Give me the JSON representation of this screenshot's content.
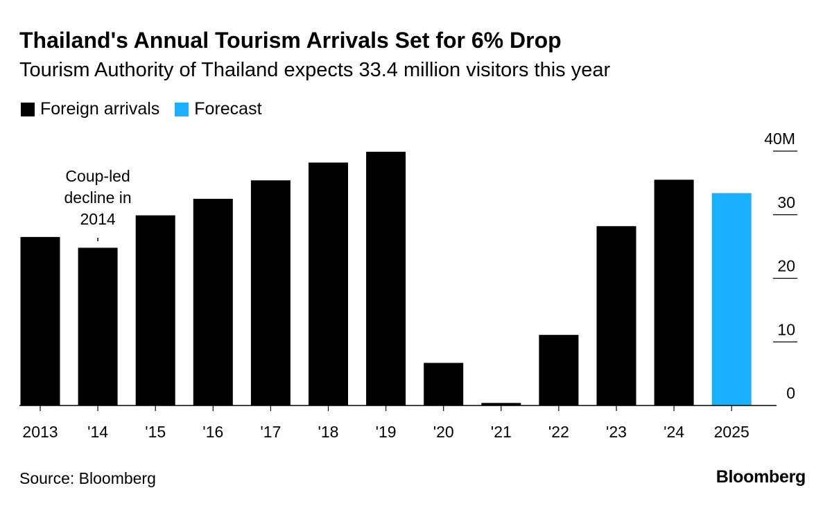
{
  "header": {
    "title": "Thailand's Annual Tourism Arrivals Set for 6% Drop",
    "subtitle": "Tourism Authority of Thailand expects 33.4 million visitors this year"
  },
  "legend": [
    {
      "label": "Foreign arrivals",
      "color": "#000000"
    },
    {
      "label": "Forecast",
      "color": "#1aafff"
    }
  ],
  "chart_data": {
    "type": "bar",
    "title": "Thailand's Annual Tourism Arrivals Set for 6% Drop",
    "subtitle": "Tourism Authority of Thailand expects 33.4 million visitors this year",
    "categories": [
      "2013",
      "'14",
      "'15",
      "'16",
      "'17",
      "'18",
      "'19",
      "'20",
      "'21",
      "'22",
      "'23",
      "'24",
      "2025"
    ],
    "series": [
      {
        "name": "Foreign arrivals",
        "color": "#000000",
        "values": [
          26.5,
          24.8,
          29.9,
          32.5,
          35.4,
          38.2,
          39.9,
          6.7,
          0.4,
          11.1,
          28.2,
          35.5,
          null
        ]
      },
      {
        "name": "Forecast",
        "color": "#1aafff",
        "values": [
          null,
          null,
          null,
          null,
          null,
          null,
          null,
          null,
          null,
          null,
          null,
          null,
          33.4
        ]
      }
    ],
    "yaxis": {
      "ticks": [
        0,
        10,
        20,
        30,
        40
      ],
      "tick_labels": [
        "0",
        "10",
        "20",
        "30",
        "40M"
      ],
      "position": "right"
    },
    "ylim": [
      0,
      40
    ],
    "xlabel": "",
    "ylabel": "",
    "annotations": [
      {
        "category": "'14",
        "lines": [
          "Coup-led",
          "decline in",
          "2014"
        ]
      }
    ]
  },
  "footer": {
    "source": "Source: Bloomberg",
    "brand": "Bloomberg"
  }
}
